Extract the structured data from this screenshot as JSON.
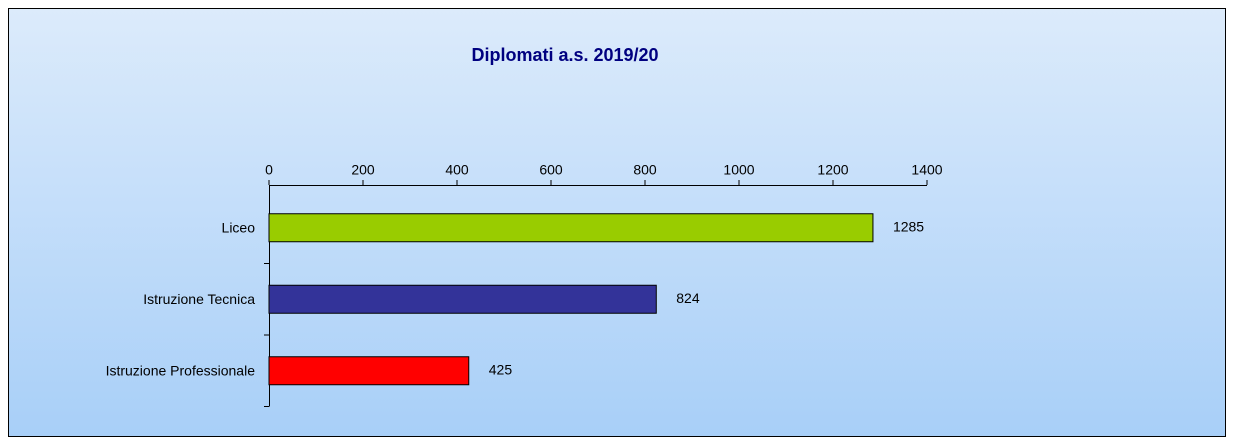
{
  "chart_data": {
    "type": "hbar",
    "title": "Diplomati a.s. 2019/20",
    "categories": [
      "Liceo",
      "Istruzione Tecnica",
      "Istruzione Professionale"
    ],
    "values": [
      1285,
      824,
      425
    ],
    "colors": [
      "#99cc00",
      "#333399",
      "#ff0000"
    ],
    "xlim": [
      0,
      1400
    ],
    "xticks": [
      0,
      200,
      400,
      600,
      800,
      1000,
      1200,
      1400
    ],
    "grid": false
  }
}
